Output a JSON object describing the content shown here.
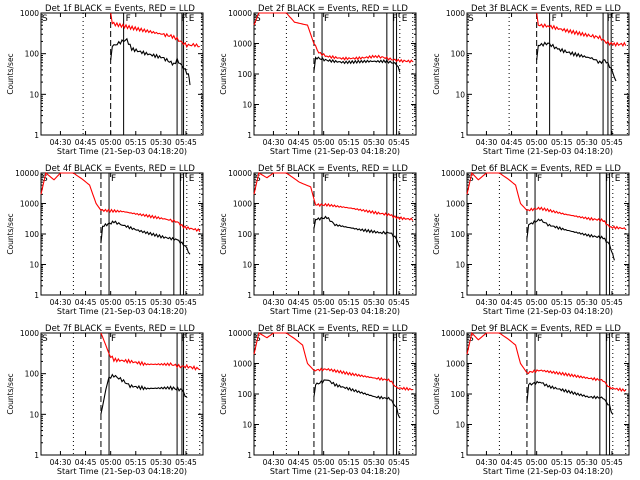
{
  "chart_data": [
    {
      "type": "line",
      "title": "Det 1f BLACK = Events, RED = LLD",
      "ymax": 1000,
      "red": [
        [
          0.43,
          1000
        ],
        [
          0.44,
          550
        ],
        [
          0.6,
          400
        ],
        [
          0.75,
          300
        ],
        [
          0.82,
          260
        ],
        [
          0.86,
          200
        ],
        [
          0.9,
          160
        ],
        [
          0.95,
          165
        ],
        [
          0.98,
          150
        ]
      ],
      "black": [
        [
          0.43,
          70
        ],
        [
          0.44,
          150
        ],
        [
          0.5,
          200
        ],
        [
          0.53,
          220
        ],
        [
          0.56,
          130
        ],
        [
          0.65,
          100
        ],
        [
          0.75,
          80
        ],
        [
          0.82,
          55
        ],
        [
          0.84,
          70
        ],
        [
          0.88,
          45
        ],
        [
          0.91,
          30
        ],
        [
          0.92,
          17
        ]
      ],
      "dashed": 0.43,
      "solid": [
        0.51,
        0.84,
        0.87,
        0.88
      ],
      "dotted": [
        0.26,
        0.9,
        0.99
      ]
    },
    {
      "type": "line",
      "title": "Det 2f BLACK = Events, RED = LLD",
      "ymax": 10000,
      "red": [
        [
          0,
          4000
        ],
        [
          0.03,
          10000
        ],
        [
          0.2,
          10000
        ],
        [
          0.25,
          5000
        ],
        [
          0.33,
          4000
        ],
        [
          0.37,
          1000
        ],
        [
          0.4,
          500
        ],
        [
          0.45,
          380
        ],
        [
          0.55,
          320
        ],
        [
          0.65,
          330
        ],
        [
          0.75,
          380
        ],
        [
          0.8,
          350
        ],
        [
          0.85,
          300
        ],
        [
          0.9,
          270
        ],
        [
          0.98,
          260
        ]
      ],
      "black": [
        [
          0.37,
          120
        ],
        [
          0.38,
          350
        ],
        [
          0.45,
          280
        ],
        [
          0.55,
          240
        ],
        [
          0.7,
          260
        ],
        [
          0.82,
          260
        ],
        [
          0.86,
          230
        ],
        [
          0.88,
          210
        ],
        [
          0.9,
          120
        ]
      ],
      "dashed": 0.37,
      "solid": [
        0.42,
        0.82,
        0.86,
        0.88
      ],
      "dotted": [
        0.2,
        0.9,
        0.98
      ]
    },
    {
      "type": "line",
      "title": "Det 3f BLACK = Events, RED = LLD",
      "ymax": 1000,
      "red": [
        [
          0.43,
          1000
        ],
        [
          0.44,
          500
        ],
        [
          0.5,
          480
        ],
        [
          0.6,
          380
        ],
        [
          0.75,
          280
        ],
        [
          0.82,
          250
        ],
        [
          0.86,
          190
        ],
        [
          0.9,
          170
        ],
        [
          0.98,
          170
        ]
      ],
      "black": [
        [
          0.43,
          70
        ],
        [
          0.44,
          160
        ],
        [
          0.5,
          180
        ],
        [
          0.56,
          130
        ],
        [
          0.65,
          100
        ],
        [
          0.78,
          75
        ],
        [
          0.82,
          60
        ],
        [
          0.85,
          70
        ],
        [
          0.88,
          50
        ],
        [
          0.9,
          35
        ],
        [
          0.92,
          20
        ]
      ],
      "dashed": 0.43,
      "solid": [
        0.51,
        0.84,
        0.87,
        0.89
      ],
      "dotted": [
        0.26,
        0.9,
        0.99
      ]
    },
    {
      "type": "line",
      "title": "Det 4f BLACK = Events, RED = LLD",
      "ymax": 10000,
      "red": [
        [
          0,
          2000
        ],
        [
          0.03,
          10000
        ],
        [
          0.08,
          6000
        ],
        [
          0.12,
          10000
        ],
        [
          0.2,
          10000
        ],
        [
          0.26,
          6000
        ],
        [
          0.3,
          4000
        ],
        [
          0.34,
          1000
        ],
        [
          0.37,
          600
        ],
        [
          0.5,
          550
        ],
        [
          0.65,
          400
        ],
        [
          0.78,
          300
        ],
        [
          0.84,
          250
        ],
        [
          0.88,
          170
        ],
        [
          0.98,
          130
        ]
      ],
      "black": [
        [
          0.37,
          50
        ],
        [
          0.38,
          180
        ],
        [
          0.45,
          250
        ],
        [
          0.5,
          200
        ],
        [
          0.6,
          130
        ],
        [
          0.75,
          80
        ],
        [
          0.84,
          65
        ],
        [
          0.88,
          45
        ],
        [
          0.9,
          35
        ],
        [
          0.92,
          20
        ]
      ],
      "dashed": 0.37,
      "solid": [
        0.42,
        0.82,
        0.86,
        0.88
      ],
      "dotted": [
        0.2,
        0.9,
        0.98
      ]
    },
    {
      "type": "line",
      "title": "Det 5f BLACK = Events, RED = LLD",
      "ymax": 10000,
      "red": [
        [
          0,
          2000
        ],
        [
          0.03,
          10000
        ],
        [
          0.08,
          7000
        ],
        [
          0.12,
          10000
        ],
        [
          0.2,
          10000
        ],
        [
          0.28,
          5000
        ],
        [
          0.35,
          3500
        ],
        [
          0.38,
          900
        ],
        [
          0.45,
          900
        ],
        [
          0.6,
          700
        ],
        [
          0.75,
          500
        ],
        [
          0.84,
          420
        ],
        [
          0.88,
          340
        ],
        [
          0.98,
          300
        ]
      ],
      "black": [
        [
          0.37,
          150
        ],
        [
          0.38,
          300
        ],
        [
          0.45,
          350
        ],
        [
          0.5,
          200
        ],
        [
          0.65,
          140
        ],
        [
          0.78,
          110
        ],
        [
          0.84,
          110
        ],
        [
          0.88,
          70
        ],
        [
          0.9,
          35
        ]
      ],
      "dashed": 0.37,
      "solid": [
        0.42,
        0.82,
        0.86,
        0.88
      ],
      "dotted": [
        0.2,
        0.9,
        0.98
      ]
    },
    {
      "type": "line",
      "title": "Det 6f BLACK = Events, RED = LLD",
      "ymax": 10000,
      "red": [
        [
          0,
          2000
        ],
        [
          0.03,
          10000
        ],
        [
          0.07,
          6000
        ],
        [
          0.12,
          10000
        ],
        [
          0.2,
          10000
        ],
        [
          0.26,
          6000
        ],
        [
          0.3,
          4000
        ],
        [
          0.33,
          1000
        ],
        [
          0.37,
          600
        ],
        [
          0.45,
          700
        ],
        [
          0.6,
          450
        ],
        [
          0.75,
          320
        ],
        [
          0.84,
          280
        ],
        [
          0.88,
          170
        ],
        [
          0.98,
          150
        ]
      ],
      "black": [
        [
          0.37,
          70
        ],
        [
          0.38,
          200
        ],
        [
          0.45,
          300
        ],
        [
          0.5,
          200
        ],
        [
          0.6,
          140
        ],
        [
          0.75,
          90
        ],
        [
          0.84,
          75
        ],
        [
          0.88,
          45
        ],
        [
          0.9,
          20
        ],
        [
          0.91,
          15
        ]
      ],
      "dashed": 0.37,
      "solid": [
        0.42,
        0.82,
        0.86,
        0.88
      ],
      "dotted": [
        0.2,
        0.9,
        0.98
      ]
    },
    {
      "type": "line",
      "title": "Det 7f BLACK = Events, RED = LLD",
      "ymax": 1000,
      "red": [
        [
          0.37,
          1000
        ],
        [
          0.4,
          500
        ],
        [
          0.42,
          300
        ],
        [
          0.45,
          220
        ],
        [
          0.55,
          200
        ],
        [
          0.65,
          170
        ],
        [
          0.8,
          170
        ],
        [
          0.86,
          150
        ],
        [
          0.9,
          150
        ],
        [
          0.98,
          130
        ]
      ],
      "black": [
        [
          0.37,
          10
        ],
        [
          0.4,
          40
        ],
        [
          0.42,
          80
        ],
        [
          0.45,
          90
        ],
        [
          0.5,
          70
        ],
        [
          0.55,
          50
        ],
        [
          0.65,
          43
        ],
        [
          0.8,
          45
        ],
        [
          0.87,
          40
        ],
        [
          0.9,
          25
        ]
      ],
      "dashed": 0.37,
      "solid": [
        0.42,
        0.84,
        0.87,
        0.88
      ],
      "dotted": [
        0.2,
        0.9,
        0.98
      ]
    },
    {
      "type": "line",
      "title": "Det 8f BLACK = Events, RED = LLD",
      "ymax": 10000,
      "red": [
        [
          0,
          2000
        ],
        [
          0.03,
          10000
        ],
        [
          0.08,
          7000
        ],
        [
          0.12,
          10000
        ],
        [
          0.2,
          10000
        ],
        [
          0.26,
          6000
        ],
        [
          0.3,
          4000
        ],
        [
          0.33,
          1000
        ],
        [
          0.37,
          600
        ],
        [
          0.45,
          650
        ],
        [
          0.6,
          450
        ],
        [
          0.75,
          330
        ],
        [
          0.84,
          280
        ],
        [
          0.88,
          160
        ],
        [
          0.98,
          140
        ]
      ],
      "black": [
        [
          0.37,
          80
        ],
        [
          0.38,
          200
        ],
        [
          0.45,
          300
        ],
        [
          0.5,
          200
        ],
        [
          0.6,
          140
        ],
        [
          0.75,
          80
        ],
        [
          0.84,
          70
        ],
        [
          0.88,
          35
        ],
        [
          0.9,
          15
        ]
      ],
      "dashed": 0.37,
      "solid": [
        0.42,
        0.82,
        0.86,
        0.88
      ],
      "dotted": [
        0.2,
        0.9,
        0.98
      ]
    },
    {
      "type": "line",
      "title": "Det 9f BLACK = Events, RED = LLD",
      "ymax": 10000,
      "red": [
        [
          0,
          2000
        ],
        [
          0.03,
          10000
        ],
        [
          0.07,
          6000
        ],
        [
          0.12,
          10000
        ],
        [
          0.2,
          10000
        ],
        [
          0.26,
          6000
        ],
        [
          0.3,
          4000
        ],
        [
          0.33,
          1000
        ],
        [
          0.37,
          500
        ],
        [
          0.45,
          600
        ],
        [
          0.6,
          450
        ],
        [
          0.75,
          330
        ],
        [
          0.84,
          280
        ],
        [
          0.88,
          160
        ],
        [
          0.98,
          130
        ]
      ],
      "black": [
        [
          0.37,
          50
        ],
        [
          0.38,
          200
        ],
        [
          0.45,
          250
        ],
        [
          0.5,
          180
        ],
        [
          0.6,
          130
        ],
        [
          0.75,
          80
        ],
        [
          0.84,
          75
        ],
        [
          0.88,
          40
        ],
        [
          0.9,
          20
        ]
      ],
      "dashed": 0.37,
      "solid": [
        0.42,
        0.82,
        0.86,
        0.88
      ],
      "dotted": [
        0.2,
        0.9,
        0.98
      ]
    }
  ],
  "common": {
    "ylabel": "Counts/sec",
    "xlabel": "Start Time (21-Sep-03 04:18:20)",
    "xticks": [
      "04:30",
      "04:45",
      "05:00",
      "05:15",
      "05:30",
      "05:45"
    ],
    "yticks": [
      "1",
      "10",
      "100",
      "1000",
      "10000"
    ],
    "markers": {
      "left": "S",
      "mid": "F",
      "right": "F",
      "end": "E"
    },
    "colors": {
      "red": "#ff0000",
      "black": "#000000"
    }
  }
}
